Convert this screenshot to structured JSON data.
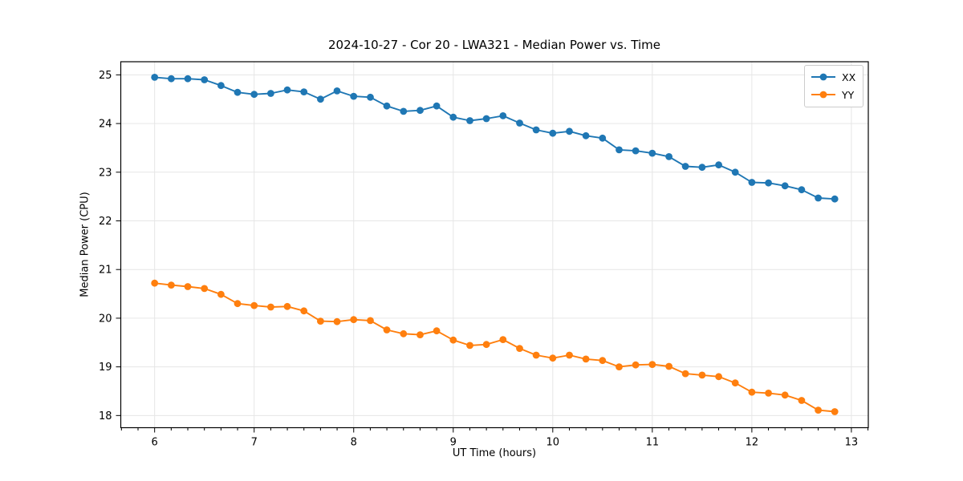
{
  "chart_data": {
    "type": "line",
    "title": "2024-10-27 - Cor 20 - LWA321 - Median Power vs. Time",
    "xlabel": "UT Time (hours)",
    "ylabel": "Median Power (CPU)",
    "xlim": [
      5.66,
      13.17
    ],
    "ylim": [
      17.75,
      25.27
    ],
    "x_ticks": [
      6,
      7,
      8,
      9,
      10,
      11,
      12,
      13
    ],
    "y_ticks": [
      18,
      19,
      20,
      21,
      22,
      23,
      24,
      25
    ],
    "x_minor_tick_step": 0.1667,
    "grid": "major",
    "grid_color": "#e6e6e6",
    "legend_position": "upper right",
    "marker": "o",
    "x": [
      6.0,
      6.167,
      6.333,
      6.5,
      6.667,
      6.833,
      7.0,
      7.167,
      7.333,
      7.5,
      7.667,
      7.833,
      8.0,
      8.167,
      8.333,
      8.5,
      8.667,
      8.833,
      9.0,
      9.167,
      9.333,
      9.5,
      9.667,
      9.833,
      10.0,
      10.167,
      10.333,
      10.5,
      10.667,
      10.833,
      11.0,
      11.167,
      11.333,
      11.5,
      11.667,
      11.833,
      12.0,
      12.167,
      12.333,
      12.5,
      12.667,
      12.833
    ],
    "series": [
      {
        "name": "XX",
        "color": "#1f77b4",
        "values": [
          24.95,
          24.92,
          24.92,
          24.9,
          24.78,
          24.64,
          24.6,
          24.62,
          24.69,
          24.65,
          24.5,
          24.67,
          24.56,
          24.54,
          24.36,
          24.25,
          24.27,
          24.36,
          24.13,
          24.06,
          24.1,
          24.16,
          24.01,
          23.87,
          23.8,
          23.84,
          23.75,
          23.7,
          23.46,
          23.44,
          23.39,
          23.32,
          23.12,
          23.1,
          23.15,
          23.0,
          22.79,
          22.78,
          22.72,
          22.64,
          22.47,
          22.45
        ]
      },
      {
        "name": "YY",
        "color": "#ff7f0e",
        "values": [
          20.72,
          20.68,
          20.65,
          20.61,
          20.49,
          20.3,
          20.26,
          20.23,
          20.24,
          20.15,
          19.94,
          19.93,
          19.97,
          19.95,
          19.76,
          19.68,
          19.66,
          19.74,
          19.55,
          19.44,
          19.46,
          19.56,
          19.38,
          19.24,
          19.18,
          19.24,
          19.16,
          19.13,
          19.0,
          19.04,
          19.05,
          19.01,
          18.86,
          18.83,
          18.8,
          18.67,
          18.48,
          18.46,
          18.42,
          18.31,
          18.11,
          18.08
        ]
      }
    ]
  }
}
